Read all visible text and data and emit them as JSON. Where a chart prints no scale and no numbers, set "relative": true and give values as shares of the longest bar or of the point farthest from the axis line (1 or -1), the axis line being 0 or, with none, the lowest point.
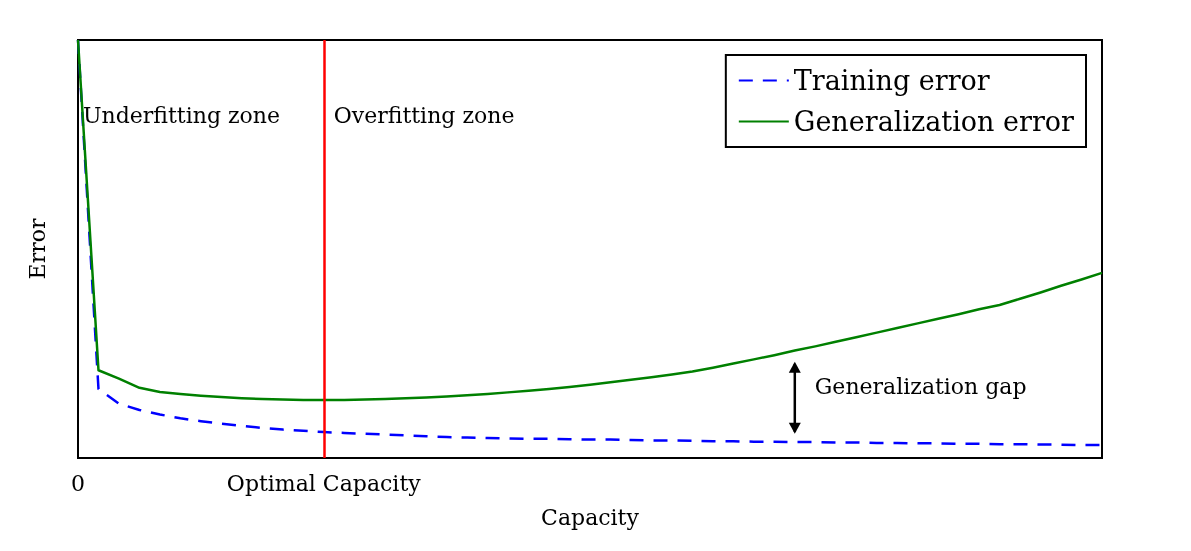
{
  "chart_data": {
    "type": "line",
    "relative": true,
    "xlabel": "Capacity",
    "ylabel": "Error",
    "legend": "top right",
    "marker": "none",
    "grid": false,
    "categories": [
      "0",
      null,
      null,
      null,
      null,
      null,
      null,
      null,
      null,
      null,
      null,
      null,
      "Optimal Capacity",
      null,
      null,
      null,
      null,
      null,
      null,
      null,
      null,
      null,
      null,
      null,
      null,
      null,
      null,
      null,
      null,
      null,
      null,
      null,
      null,
      null,
      null,
      null,
      null,
      null,
      null,
      null,
      null,
      null,
      null,
      null,
      null,
      null,
      null,
      null,
      null,
      null,
      null
    ],
    "series": [
      {
        "name": "Training error",
        "color": "#0000ff",
        "line_style": "dashed",
        "values": [
          1,
          0.165,
          0.13,
          0.115,
          0.104,
          0.095,
          0.088,
          0.082,
          0.077,
          0.072,
          0.068,
          0.065,
          0.062,
          0.06,
          0.058,
          0.056,
          0.054,
          0.052,
          0.05,
          0.049,
          0.048,
          0.047,
          0.046,
          0.046,
          0.045,
          0.044,
          0.044,
          0.043,
          0.042,
          0.042,
          0.041,
          0.04,
          0.04,
          0.039,
          0.039,
          0.038,
          0.038,
          0.037,
          0.037,
          0.036,
          0.036,
          0.035,
          0.035,
          0.034,
          0.034,
          0.033,
          0.033,
          0.032,
          0.032,
          0.031,
          0.031
        ]
      },
      {
        "name": "Generalization error",
        "color": "#008000",
        "line_style": "solid",
        "values": [
          1,
          0.21,
          0.19,
          0.168,
          0.158,
          0.153,
          0.149,
          0.146,
          0.143,
          0.141,
          0.14,
          0.139,
          0.139,
          0.139,
          0.14,
          0.141,
          0.143,
          0.145,
          0.147,
          0.15,
          0.153,
          0.157,
          0.161,
          0.165,
          0.17,
          0.175,
          0.181,
          0.187,
          0.193,
          0.2,
          0.207,
          0.216,
          0.226,
          0.236,
          0.246,
          0.257,
          0.267,
          0.278,
          0.289,
          0.3,
          0.311,
          0.322,
          0.333,
          0.344,
          0.356,
          0.366,
          0.381,
          0.396,
          0.412,
          0.427,
          0.443
        ]
      }
    ],
    "ref_lines": [
      {
        "axis": "x",
        "value": "Optimal Capacity",
        "color": "#ff0000"
      }
    ],
    "annotations": [
      "Underfitting zone",
      "Overfitting zone",
      "Generalization gap"
    ]
  }
}
